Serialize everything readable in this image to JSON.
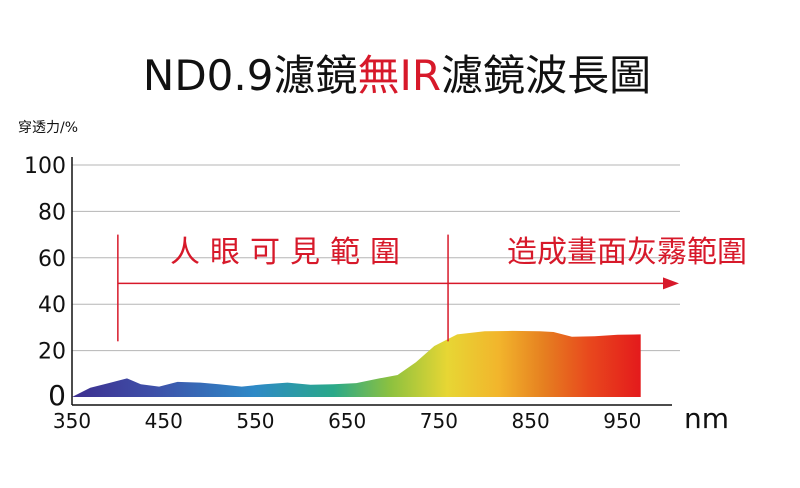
{
  "title": {
    "part1": "ND0.9濾鏡",
    "part2": "無IR",
    "part3": "濾鏡波長圖"
  },
  "colors": {
    "text": "#111111",
    "accent": "#d7192a",
    "grid": "#b5b5b5"
  },
  "chart_data": {
    "type": "area",
    "title": "ND0.9濾鏡無IR濾鏡波長圖",
    "ylabel": "穿透力/%",
    "xlabel": "nm",
    "x_ticks": [
      350,
      450,
      550,
      650,
      750,
      850,
      950
    ],
    "y_ticks": [
      0,
      20,
      40,
      60,
      80,
      100
    ],
    "xlim": [
      350,
      1000
    ],
    "ylim": [
      0,
      100
    ],
    "grid": true,
    "x": [
      350,
      370,
      390,
      410,
      425,
      445,
      465,
      490,
      510,
      535,
      560,
      585,
      610,
      635,
      660,
      685,
      705,
      725,
      745,
      770,
      800,
      830,
      860,
      875,
      895,
      920,
      945,
      970
    ],
    "values": [
      0,
      4,
      6,
      8,
      5.5,
      4.5,
      6.5,
      6.2,
      5.5,
      4.5,
      5.5,
      6.2,
      5.3,
      5.5,
      6,
      8,
      9.5,
      15,
      22,
      27,
      28.3,
      28.5,
      28.3,
      28,
      26,
      26.2,
      26.8,
      27
    ],
    "annotations": {
      "visible_label": "人眼可見範圍",
      "infrared_label": "造成畫面灰霧範圍",
      "divider_start_x": 400,
      "divider_mid_x": 760,
      "arrow_y": 49
    }
  }
}
